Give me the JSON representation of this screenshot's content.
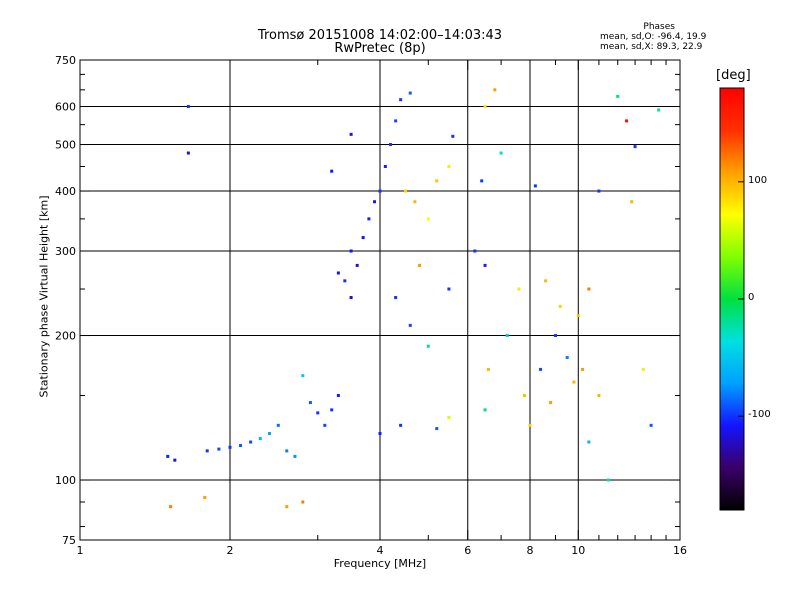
{
  "header": {
    "title_line1": "Tromsø 20151008 14:02:00–14:03:43",
    "title_line2": "RwPretec (8p)"
  },
  "phases_box": {
    "heading": "Phases",
    "line_o": "mean, sd,O: -96.4, 19.9",
    "line_x": "mean, sd,X:  89.3, 22.9"
  },
  "colorbar": {
    "unit": "[deg]",
    "ticks": [
      {
        "value": 100,
        "label": "100"
      },
      {
        "value": 0,
        "label": "0"
      },
      {
        "value": -100,
        "label": "-100"
      }
    ],
    "range": [
      -180,
      180
    ],
    "colormap": [
      "#000000",
      "#3a0066",
      "#1414ff",
      "#00a0ff",
      "#00e0e0",
      "#00e040",
      "#80ff00",
      "#ffff00",
      "#ffa000",
      "#ff3000",
      "#ff0000"
    ]
  },
  "chart_data": {
    "type": "scatter",
    "title": "Tromsø 20151008 14:02:00–14:03:43",
    "subtitle": "RwPretec (8p)",
    "xlabel": "Frequency [MHz]",
    "ylabel": "Stationary phase Virtual Height [km]",
    "xscale": "log",
    "yscale": "log",
    "xlim": [
      1,
      16
    ],
    "ylim": [
      75,
      750
    ],
    "xticks": [
      {
        "value": 1,
        "label": "1"
      },
      {
        "value": 2,
        "label": "2"
      },
      {
        "value": 4,
        "label": "4"
      },
      {
        "value": 6,
        "label": "6"
      },
      {
        "value": 8,
        "label": "8"
      },
      {
        "value": 10,
        "label": "10"
      },
      {
        "value": 16,
        "label": "16"
      }
    ],
    "yticks": [
      {
        "value": 75,
        "label": "75"
      },
      {
        "value": 100,
        "label": "100"
      },
      {
        "value": 200,
        "label": "200"
      },
      {
        "value": 300,
        "label": "300"
      },
      {
        "value": 400,
        "label": "400"
      },
      {
        "value": 500,
        "label": "500"
      },
      {
        "value": 600,
        "label": "600"
      },
      {
        "value": 750,
        "label": "750"
      }
    ],
    "grid_x": [
      2,
      4,
      6,
      8,
      10
    ],
    "grid_y": [
      100,
      200,
      300,
      400,
      500,
      600
    ],
    "color_by": "phase [deg]",
    "points": [
      {
        "f": 1.5,
        "h": 112,
        "p": -105
      },
      {
        "f": 1.55,
        "h": 110,
        "p": -110
      },
      {
        "f": 1.52,
        "h": 88,
        "p": 120
      },
      {
        "f": 1.65,
        "h": 600,
        "p": -100
      },
      {
        "f": 1.65,
        "h": 480,
        "p": -110
      },
      {
        "f": 1.78,
        "h": 92,
        "p": 110
      },
      {
        "f": 1.8,
        "h": 115,
        "p": -100
      },
      {
        "f": 1.9,
        "h": 116,
        "p": -95
      },
      {
        "f": 2.0,
        "h": 117,
        "p": -100
      },
      {
        "f": 2.1,
        "h": 118,
        "p": -90
      },
      {
        "f": 2.2,
        "h": 120,
        "p": -95
      },
      {
        "f": 2.3,
        "h": 122,
        "p": -60
      },
      {
        "f": 2.4,
        "h": 125,
        "p": -70
      },
      {
        "f": 2.5,
        "h": 130,
        "p": -85
      },
      {
        "f": 2.6,
        "h": 115,
        "p": -80
      },
      {
        "f": 2.7,
        "h": 112,
        "p": -75
      },
      {
        "f": 2.6,
        "h": 88,
        "p": 110
      },
      {
        "f": 2.8,
        "h": 90,
        "p": 120
      },
      {
        "f": 2.8,
        "h": 165,
        "p": -50
      },
      {
        "f": 2.9,
        "h": 145,
        "p": -90
      },
      {
        "f": 3.0,
        "h": 138,
        "p": -100
      },
      {
        "f": 3.1,
        "h": 130,
        "p": -95
      },
      {
        "f": 3.2,
        "h": 140,
        "p": -100
      },
      {
        "f": 3.3,
        "h": 150,
        "p": -105
      },
      {
        "f": 3.3,
        "h": 270,
        "p": -110
      },
      {
        "f": 3.4,
        "h": 260,
        "p": -100
      },
      {
        "f": 3.5,
        "h": 240,
        "p": -120
      },
      {
        "f": 3.5,
        "h": 300,
        "p": -110
      },
      {
        "f": 3.6,
        "h": 280,
        "p": -115
      },
      {
        "f": 3.7,
        "h": 320,
        "p": -110
      },
      {
        "f": 3.8,
        "h": 350,
        "p": -105
      },
      {
        "f": 3.9,
        "h": 380,
        "p": -110
      },
      {
        "f": 4.0,
        "h": 400,
        "p": -100
      },
      {
        "f": 4.1,
        "h": 450,
        "p": -105
      },
      {
        "f": 4.2,
        "h": 500,
        "p": -100
      },
      {
        "f": 4.3,
        "h": 560,
        "p": -95
      },
      {
        "f": 4.4,
        "h": 620,
        "p": -100
      },
      {
        "f": 4.6,
        "h": 640,
        "p": -90
      },
      {
        "f": 3.5,
        "h": 525,
        "p": -110
      },
      {
        "f": 3.2,
        "h": 440,
        "p": -110
      },
      {
        "f": 4.5,
        "h": 400,
        "p": 90
      },
      {
        "f": 4.7,
        "h": 380,
        "p": 100
      },
      {
        "f": 5.0,
        "h": 350,
        "p": 70
      },
      {
        "f": 5.2,
        "h": 420,
        "p": 95
      },
      {
        "f": 5.5,
        "h": 450,
        "p": 80
      },
      {
        "f": 5.6,
        "h": 520,
        "p": -100
      },
      {
        "f": 4.8,
        "h": 280,
        "p": 110
      },
      {
        "f": 4.3,
        "h": 240,
        "p": -100
      },
      {
        "f": 4.6,
        "h": 210,
        "p": -95
      },
      {
        "f": 5.0,
        "h": 190,
        "p": -20
      },
      {
        "f": 5.5,
        "h": 250,
        "p": -100
      },
      {
        "f": 4.0,
        "h": 125,
        "p": -105
      },
      {
        "f": 4.4,
        "h": 130,
        "p": -100
      },
      {
        "f": 5.2,
        "h": 128,
        "p": -90
      },
      {
        "f": 5.5,
        "h": 135,
        "p": 60
      },
      {
        "f": 6.2,
        "h": 300,
        "p": -100
      },
      {
        "f": 6.5,
        "h": 280,
        "p": -105
      },
      {
        "f": 6.4,
        "h": 420,
        "p": -100
      },
      {
        "f": 6.5,
        "h": 600,
        "p": 80
      },
      {
        "f": 6.8,
        "h": 650,
        "p": 110
      },
      {
        "f": 6.6,
        "h": 170,
        "p": 100
      },
      {
        "f": 6.5,
        "h": 140,
        "p": -10
      },
      {
        "f": 7.0,
        "h": 480,
        "p": -40
      },
      {
        "f": 7.2,
        "h": 200,
        "p": -50
      },
      {
        "f": 7.6,
        "h": 250,
        "p": 80
      },
      {
        "f": 7.8,
        "h": 150,
        "p": 95
      },
      {
        "f": 8.0,
        "h": 130,
        "p": 90
      },
      {
        "f": 8.2,
        "h": 410,
        "p": -100
      },
      {
        "f": 8.4,
        "h": 170,
        "p": -95
      },
      {
        "f": 8.6,
        "h": 260,
        "p": 100
      },
      {
        "f": 8.8,
        "h": 145,
        "p": 110
      },
      {
        "f": 9.0,
        "h": 200,
        "p": -100
      },
      {
        "f": 9.2,
        "h": 230,
        "p": 90
      },
      {
        "f": 9.5,
        "h": 180,
        "p": -80
      },
      {
        "f": 9.8,
        "h": 160,
        "p": 100
      },
      {
        "f": 10.0,
        "h": 220,
        "p": 95
      },
      {
        "f": 10.2,
        "h": 170,
        "p": 110
      },
      {
        "f": 10.5,
        "h": 120,
        "p": -60
      },
      {
        "f": 11.0,
        "h": 150,
        "p": 100
      },
      {
        "f": 11.5,
        "h": 100,
        "p": -30
      },
      {
        "f": 12.0,
        "h": 630,
        "p": -10
      },
      {
        "f": 12.5,
        "h": 560,
        "p": 170
      },
      {
        "f": 13.0,
        "h": 495,
        "p": -100
      },
      {
        "f": 12.8,
        "h": 380,
        "p": 100
      },
      {
        "f": 13.5,
        "h": 170,
        "p": 80
      },
      {
        "f": 14.0,
        "h": 130,
        "p": -90
      },
      {
        "f": 14.5,
        "h": 590,
        "p": -20
      },
      {
        "f": 11.0,
        "h": 400,
        "p": -100
      },
      {
        "f": 10.5,
        "h": 250,
        "p": 120
      }
    ]
  }
}
